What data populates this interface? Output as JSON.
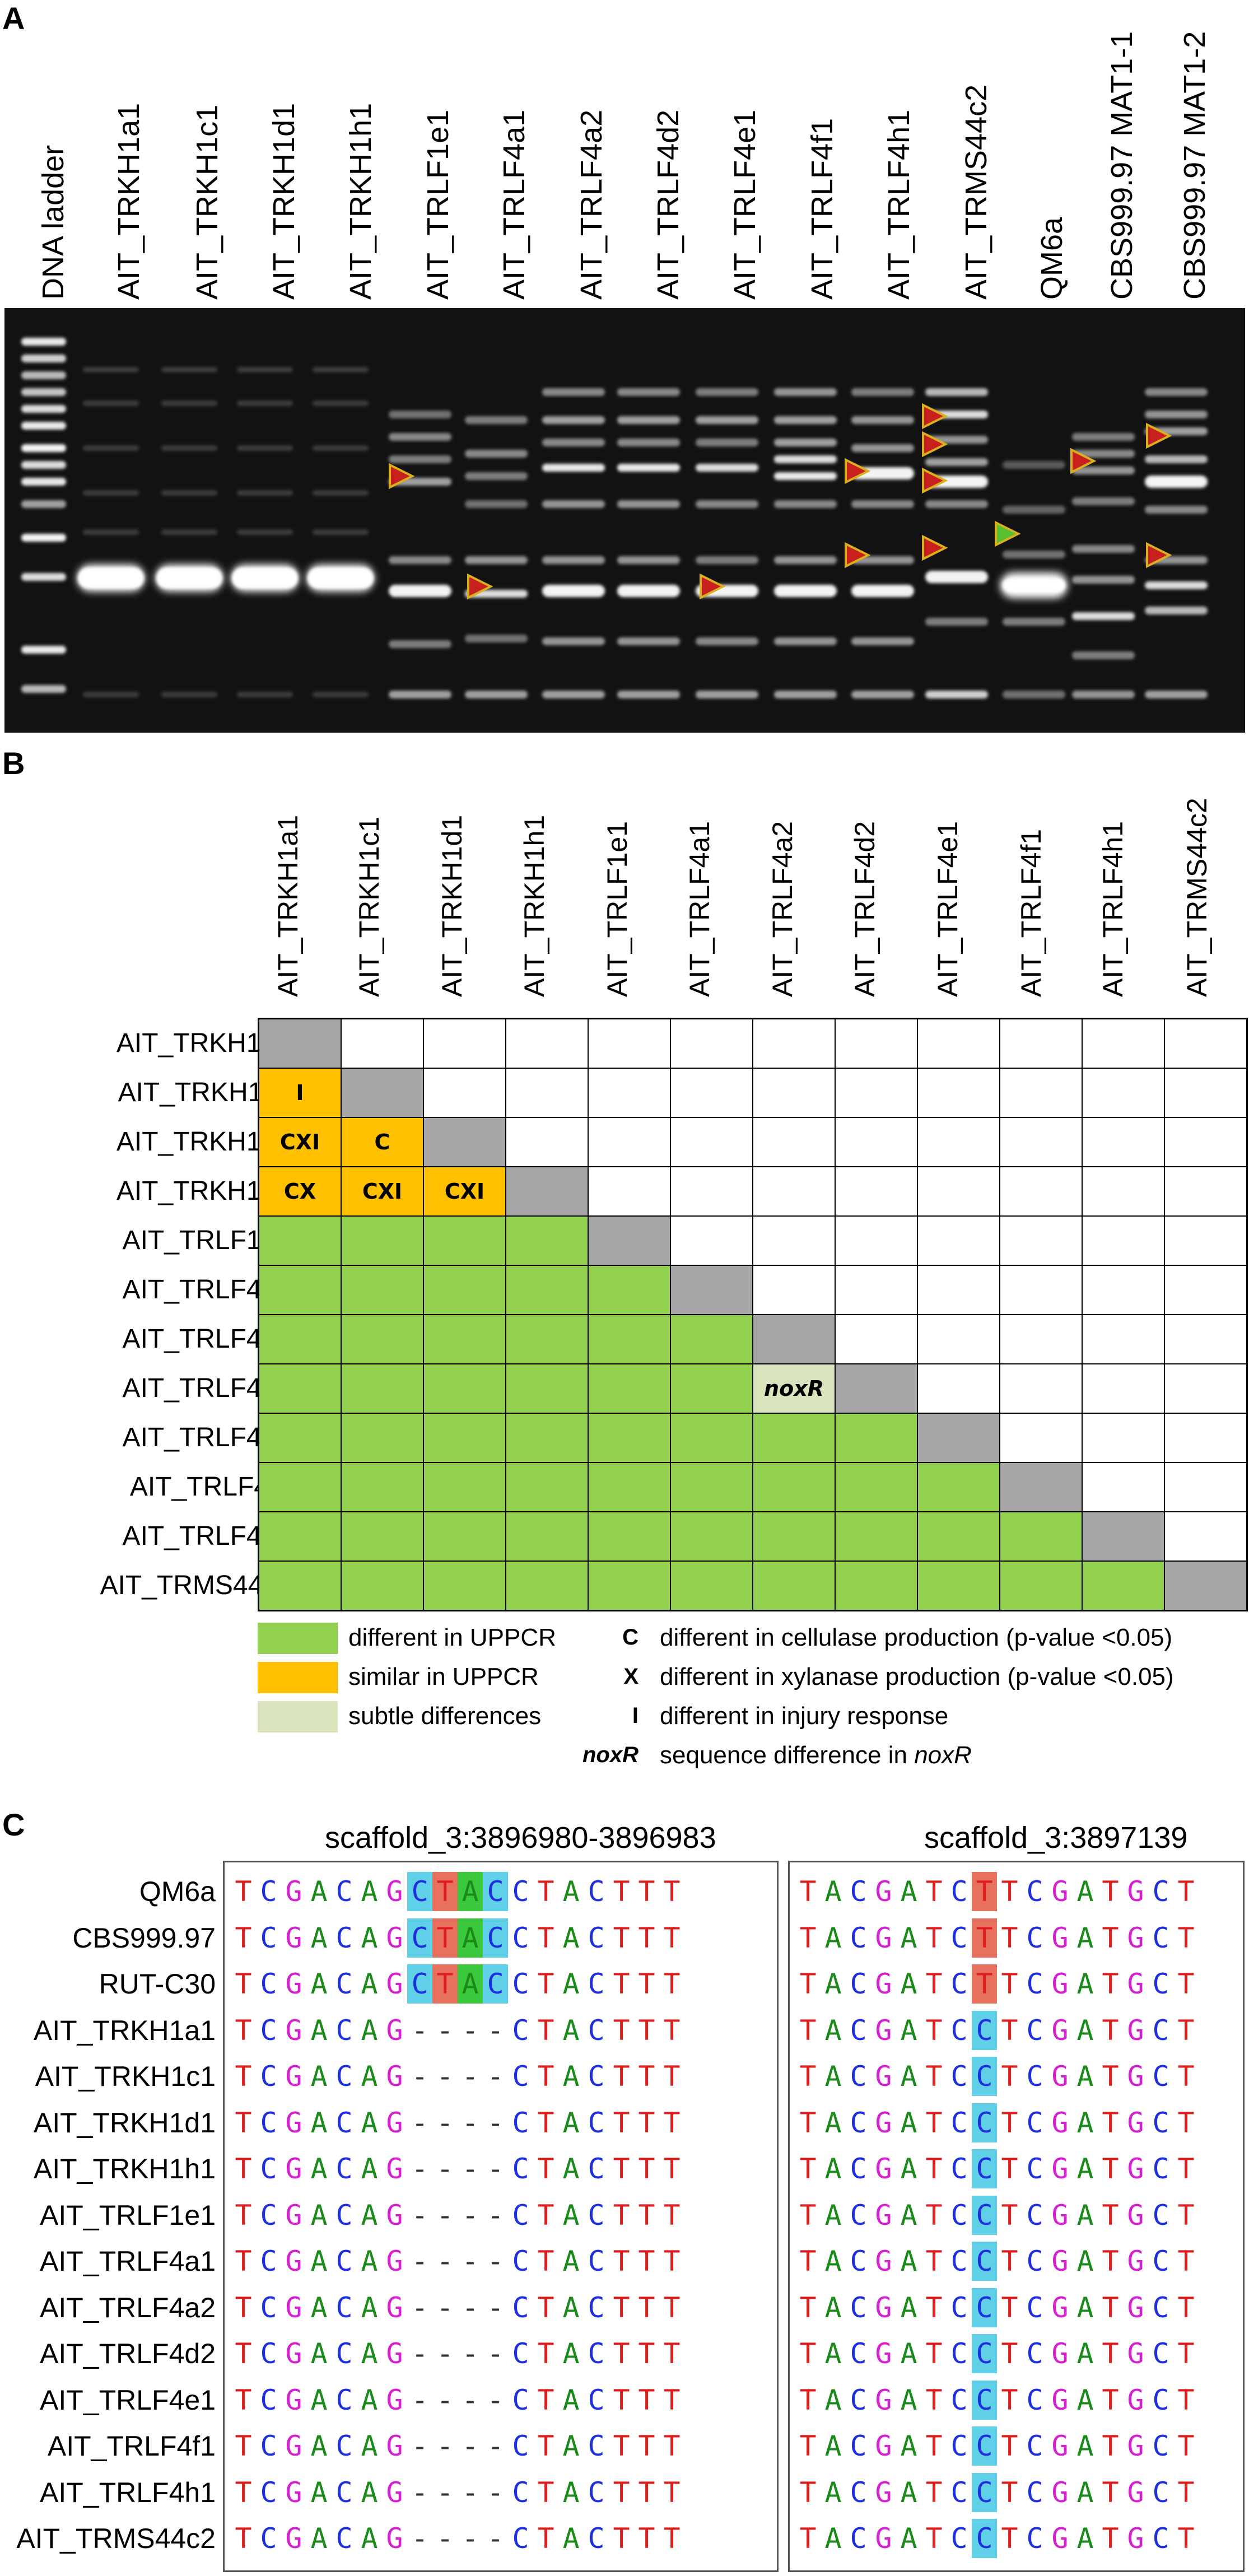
{
  "panel_a": {
    "letter": "A",
    "lanes": [
      "DNA ladder",
      "AIT_TRKH1a1",
      "AIT_TRKH1c1",
      "AIT_TRKH1d1",
      "AIT_TRKH1h1",
      "AIT_TRLF1e1",
      "AIT_TRLF4a1",
      "AIT_TRLF4a2",
      "AIT_TRLF4d2",
      "AIT_TRLF4e1",
      "AIT_TRLF4f1",
      "AIT_TRLF4h1",
      "AIT_TRMS44c2",
      "QM6a",
      "CBS999.97 MAT1-1",
      "CBS999.97 MAT1-2"
    ],
    "marker_colors": {
      "red": "#c8201c",
      "green": "#58c030",
      "edge": "#d8b020"
    }
  },
  "panel_b": {
    "letter": "B",
    "strains": [
      "AIT_TRKH1a1",
      "AIT_TRKH1c1",
      "AIT_TRKH1d1",
      "AIT_TRKH1h1",
      "AIT_TRLF1e1",
      "AIT_TRLF4a1",
      "AIT_TRLF4a2",
      "AIT_TRLF4d2",
      "AIT_TRLF4e1",
      "AIT_TRLF4f1",
      "AIT_TRLF4h1",
      "AIT_TRMS44c2"
    ],
    "special_cells": [
      {
        "row": 1,
        "col": 0,
        "kind": "orange",
        "label": "I"
      },
      {
        "row": 2,
        "col": 0,
        "kind": "orange",
        "label": "CXI"
      },
      {
        "row": 2,
        "col": 1,
        "kind": "orange",
        "label": "C"
      },
      {
        "row": 3,
        "col": 0,
        "kind": "orange",
        "label": "CX"
      },
      {
        "row": 3,
        "col": 1,
        "kind": "orange",
        "label": "CXI"
      },
      {
        "row": 3,
        "col": 2,
        "kind": "orange",
        "label": "CXI"
      },
      {
        "row": 7,
        "col": 6,
        "kind": "light",
        "label": "noxR"
      }
    ],
    "colors": {
      "green": "#92d050",
      "orange": "#ffc000",
      "light": "#d8e4bc",
      "grey": "#a6a6a6"
    },
    "legend": {
      "swatches": [
        "different in UPPCR",
        "similar in UPPCR",
        "subtle differences"
      ],
      "codes": [
        {
          "code": "C",
          "text": "different in cellulase production (p-value <0.05)"
        },
        {
          "code": "X",
          "text": "different in xylanase production (p-value <0.05)"
        },
        {
          "code": "I",
          "text": "different in injury response"
        },
        {
          "code": "noxR",
          "text_prefix": "sequence difference in ",
          "text_italic": "noxR"
        }
      ]
    }
  },
  "panel_c": {
    "letter": "C",
    "header_left": "scaffold_3:3896980-3896983",
    "header_right": "scaffold_3:3897139",
    "rows": [
      {
        "name": "QM6a",
        "left": "TCGACAGCTACCTACTTT",
        "right": "TACGATCTTCGATGCT",
        "ref": true
      },
      {
        "name": "CBS999.97",
        "left": "TCGACAGCTACCTACTTT",
        "right": "TACGATCTTCGATGCT",
        "ref": true
      },
      {
        "name": "RUT-C30",
        "left": "TCGACAGCTACCTACTTT",
        "right": "TACGATCTTCGATGCT",
        "ref": true
      },
      {
        "name": "AIT_TRKH1a1",
        "left": "TCGACAG----CTACTTT",
        "right": "TACGATCCTCGATGCT",
        "ref": false
      },
      {
        "name": "AIT_TRKH1c1",
        "left": "TCGACAG----CTACTTT",
        "right": "TACGATCCTCGATGCT",
        "ref": false
      },
      {
        "name": "AIT_TRKH1d1",
        "left": "TCGACAG----CTACTTT",
        "right": "TACGATCCTCGATGCT",
        "ref": false
      },
      {
        "name": "AIT_TRKH1h1",
        "left": "TCGACAG----CTACTTT",
        "right": "TACGATCCTCGATGCT",
        "ref": false
      },
      {
        "name": "AIT_TRLF1e1",
        "left": "TCGACAG----CTACTTT",
        "right": "TACGATCCTCGATGCT",
        "ref": false
      },
      {
        "name": "AIT_TRLF4a1",
        "left": "TCGACAG----CTACTTT",
        "right": "TACGATCCTCGATGCT",
        "ref": false
      },
      {
        "name": "AIT_TRLF4a2",
        "left": "TCGACAG----CTACTTT",
        "right": "TACGATCCTCGATGCT",
        "ref": false
      },
      {
        "name": "AIT_TRLF4d2",
        "left": "TCGACAG----CTACTTT",
        "right": "TACGATCCTCGATGCT",
        "ref": false
      },
      {
        "name": "AIT_TRLF4e1",
        "left": "TCGACAG----CTACTTT",
        "right": "TACGATCCTCGATGCT",
        "ref": false
      },
      {
        "name": "AIT_TRLF4f1",
        "left": "TCGACAG----CTACTTT",
        "right": "TACGATCCTCGATGCT",
        "ref": false
      },
      {
        "name": "AIT_TRLF4h1",
        "left": "TCGACAG----CTACTTT",
        "right": "TACGATCCTCGATGCT",
        "ref": false
      },
      {
        "name": "AIT_TRMS44c2",
        "left": "TCGACAG----CTACTTT",
        "right": "TACGATCCTCGATGCT",
        "ref": false
      }
    ],
    "base_colors": {
      "A": "#1a8a1a",
      "C": "#1f2fe0",
      "G": "#d61fd0",
      "T": "#e01d1d"
    },
    "highlight_colors": {
      "cyan": "#5fd0e8",
      "red": "#e8705e",
      "green": "#3cc83c"
    }
  }
}
